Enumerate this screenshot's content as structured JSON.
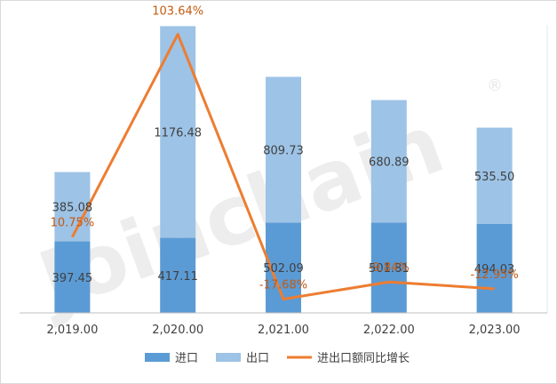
{
  "watermark": {
    "text": "Joinchain",
    "mark": "®"
  },
  "chart_data": {
    "type": "bar",
    "stacked": true,
    "categories": [
      "2,019.00",
      "2,020.00",
      "2,021.00",
      "2,022.00",
      "2,023.00"
    ],
    "series": [
      {
        "name": "进口",
        "type": "bar",
        "color": "#5b9bd5",
        "values": [
          397.45,
          417.11,
          502.09,
          501.81,
          494.03
        ],
        "labels": [
          "397.45",
          "417.11",
          "502.09",
          "501.81",
          "494.03"
        ]
      },
      {
        "name": "出口",
        "type": "bar",
        "color": "#9dc3e6",
        "values": [
          385.08,
          1176.48,
          809.73,
          680.89,
          535.5
        ],
        "labels": [
          "385.08",
          "1176.48",
          "809.73",
          "680.89",
          "535.50"
        ]
      },
      {
        "name": "进出口额同比增长",
        "type": "line",
        "axis": "secondary",
        "color": "#ed7d31",
        "values": [
          10.75,
          103.64,
          -17.68,
          -9.84,
          -12.95
        ],
        "labels": [
          "10.75%",
          "103.64%",
          "-17.68%",
          "-9.84%",
          "-12.95%"
        ]
      }
    ],
    "ylim": [
      0,
      1650
    ],
    "y2lim": [
      -24,
      112
    ],
    "legend": "bottom",
    "grid": false
  }
}
